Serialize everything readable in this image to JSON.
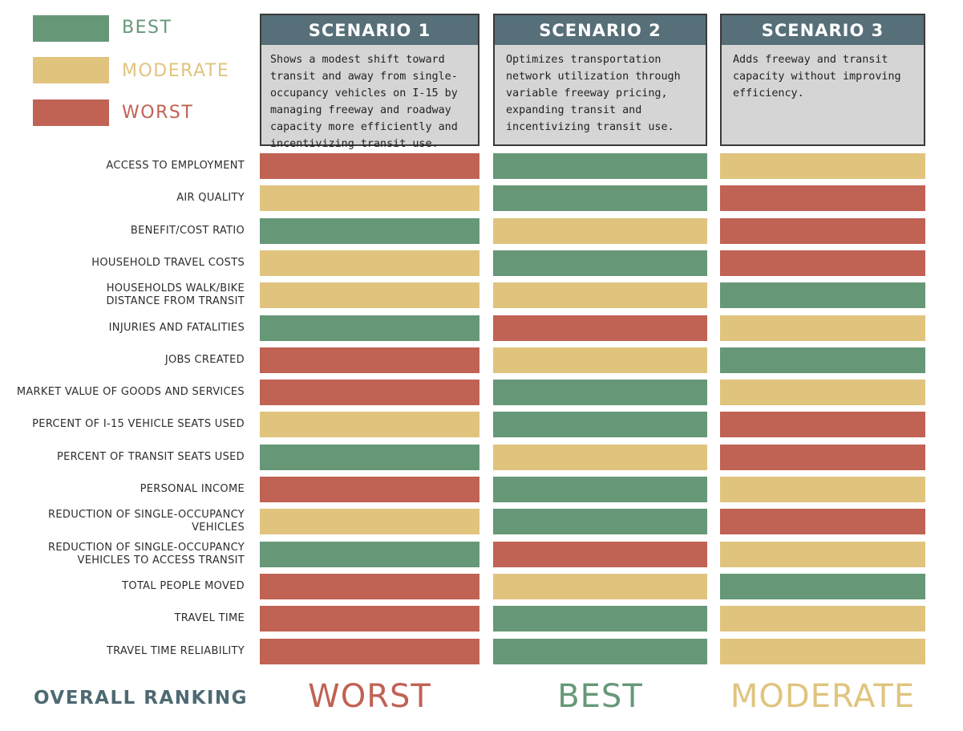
{
  "colors": {
    "best": "#669878",
    "moderate": "#e0c47e",
    "worst": "#c06254",
    "header": "#566f78",
    "overall_label": "#4e6a73"
  },
  "legend": [
    {
      "key": "best",
      "label": "BEST"
    },
    {
      "key": "moderate",
      "label": "MODERATE"
    },
    {
      "key": "worst",
      "label": "WORST"
    }
  ],
  "scenarios": [
    {
      "title": "SCENARIO 1",
      "description": "Shows a modest shift toward transit and away from single-occupancy vehicles on I-15 by managing freeway and roadway capacity more efficiently and incentivizing transit use."
    },
    {
      "title": "SCENARIO 2",
      "description": "Optimizes transportation network utilization through variable freeway pricing, expanding transit and incentivizing transit use."
    },
    {
      "title": "SCENARIO 3",
      "description": "Adds freeway and transit capacity without improving efficiency."
    }
  ],
  "overall": {
    "label": "OVERALL RANKING",
    "values": [
      {
        "text": "WORST",
        "rating": "worst"
      },
      {
        "text": "BEST",
        "rating": "best"
      },
      {
        "text": "MODERATE",
        "rating": "moderate"
      }
    ]
  },
  "chart_data": {
    "type": "heatmap",
    "columns": [
      "SCENARIO 1",
      "SCENARIO 2",
      "SCENARIO 3"
    ],
    "rows": [
      {
        "label": "ACCESS TO EMPLOYMENT",
        "ratings": [
          "worst",
          "best",
          "moderate"
        ]
      },
      {
        "label": "AIR QUALITY",
        "ratings": [
          "moderate",
          "best",
          "worst"
        ]
      },
      {
        "label": "BENEFIT/COST RATIO",
        "ratings": [
          "best",
          "moderate",
          "worst"
        ]
      },
      {
        "label": "HOUSEHOLD TRAVEL COSTS",
        "ratings": [
          "moderate",
          "best",
          "worst"
        ]
      },
      {
        "label": "HOUSEHOLDS WALK/BIKE\nDISTANCE FROM TRANSIT",
        "ratings": [
          "moderate",
          "moderate",
          "best"
        ]
      },
      {
        "label": "INJURIES AND FATALITIES",
        "ratings": [
          "best",
          "worst",
          "moderate"
        ]
      },
      {
        "label": "JOBS CREATED",
        "ratings": [
          "worst",
          "moderate",
          "best"
        ]
      },
      {
        "label": "MARKET VALUE OF GOODS AND SERVICES",
        "ratings": [
          "worst",
          "best",
          "moderate"
        ]
      },
      {
        "label": "PERCENT OF I-15 VEHICLE SEATS USED",
        "ratings": [
          "moderate",
          "best",
          "worst"
        ]
      },
      {
        "label": "PERCENT OF TRANSIT SEATS USED",
        "ratings": [
          "best",
          "moderate",
          "worst"
        ]
      },
      {
        "label": "PERSONAL INCOME",
        "ratings": [
          "worst",
          "best",
          "moderate"
        ]
      },
      {
        "label": "REDUCTION OF SINGLE-OCCUPANCY\nVEHICLES",
        "ratings": [
          "moderate",
          "best",
          "worst"
        ]
      },
      {
        "label": "REDUCTION OF SINGLE-OCCUPANCY\nVEHICLES TO ACCESS TRANSIT",
        "ratings": [
          "best",
          "worst",
          "moderate"
        ]
      },
      {
        "label": "TOTAL PEOPLE MOVED",
        "ratings": [
          "worst",
          "moderate",
          "best"
        ]
      },
      {
        "label": "TRAVEL TIME",
        "ratings": [
          "worst",
          "best",
          "moderate"
        ]
      },
      {
        "label": "TRAVEL TIME RELIABILITY",
        "ratings": [
          "worst",
          "best",
          "moderate"
        ]
      }
    ]
  }
}
